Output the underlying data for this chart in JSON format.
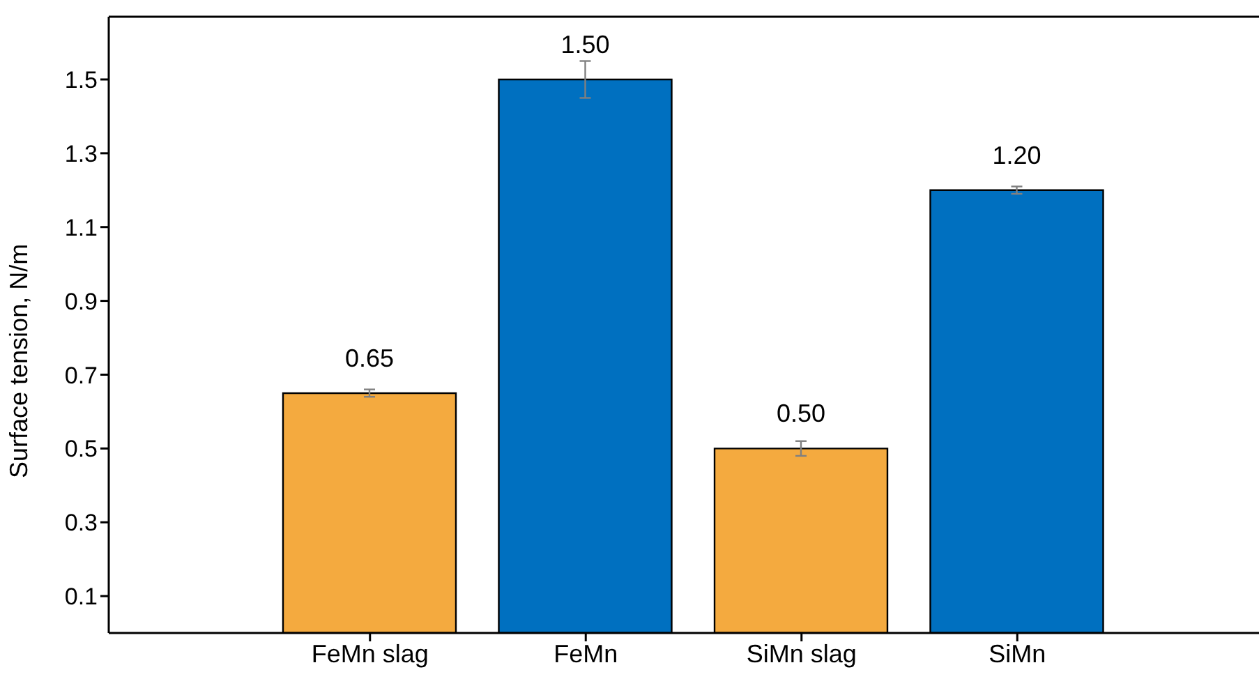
{
  "chart_data": {
    "type": "bar",
    "ylabel": "Surface tension, N/m",
    "categories": [
      "FeMn slag",
      "FeMn",
      "SiMn slag",
      "SiMn"
    ],
    "values": [
      0.65,
      1.5,
      0.5,
      1.2
    ],
    "colors": [
      "#f4aa3f",
      "#0070c0",
      "#f4aa3f",
      "#0070c0"
    ],
    "errors": [
      0.01,
      0.05,
      0.02,
      0.01
    ],
    "value_labels": [
      "0.65",
      "1.50",
      "0.50",
      "1.20"
    ],
    "ylim": [
      0,
      1.67
    ],
    "yticks": [
      0.1,
      0.3,
      0.5,
      0.7,
      0.9,
      1.1,
      1.3,
      1.5
    ],
    "grid": false
  }
}
